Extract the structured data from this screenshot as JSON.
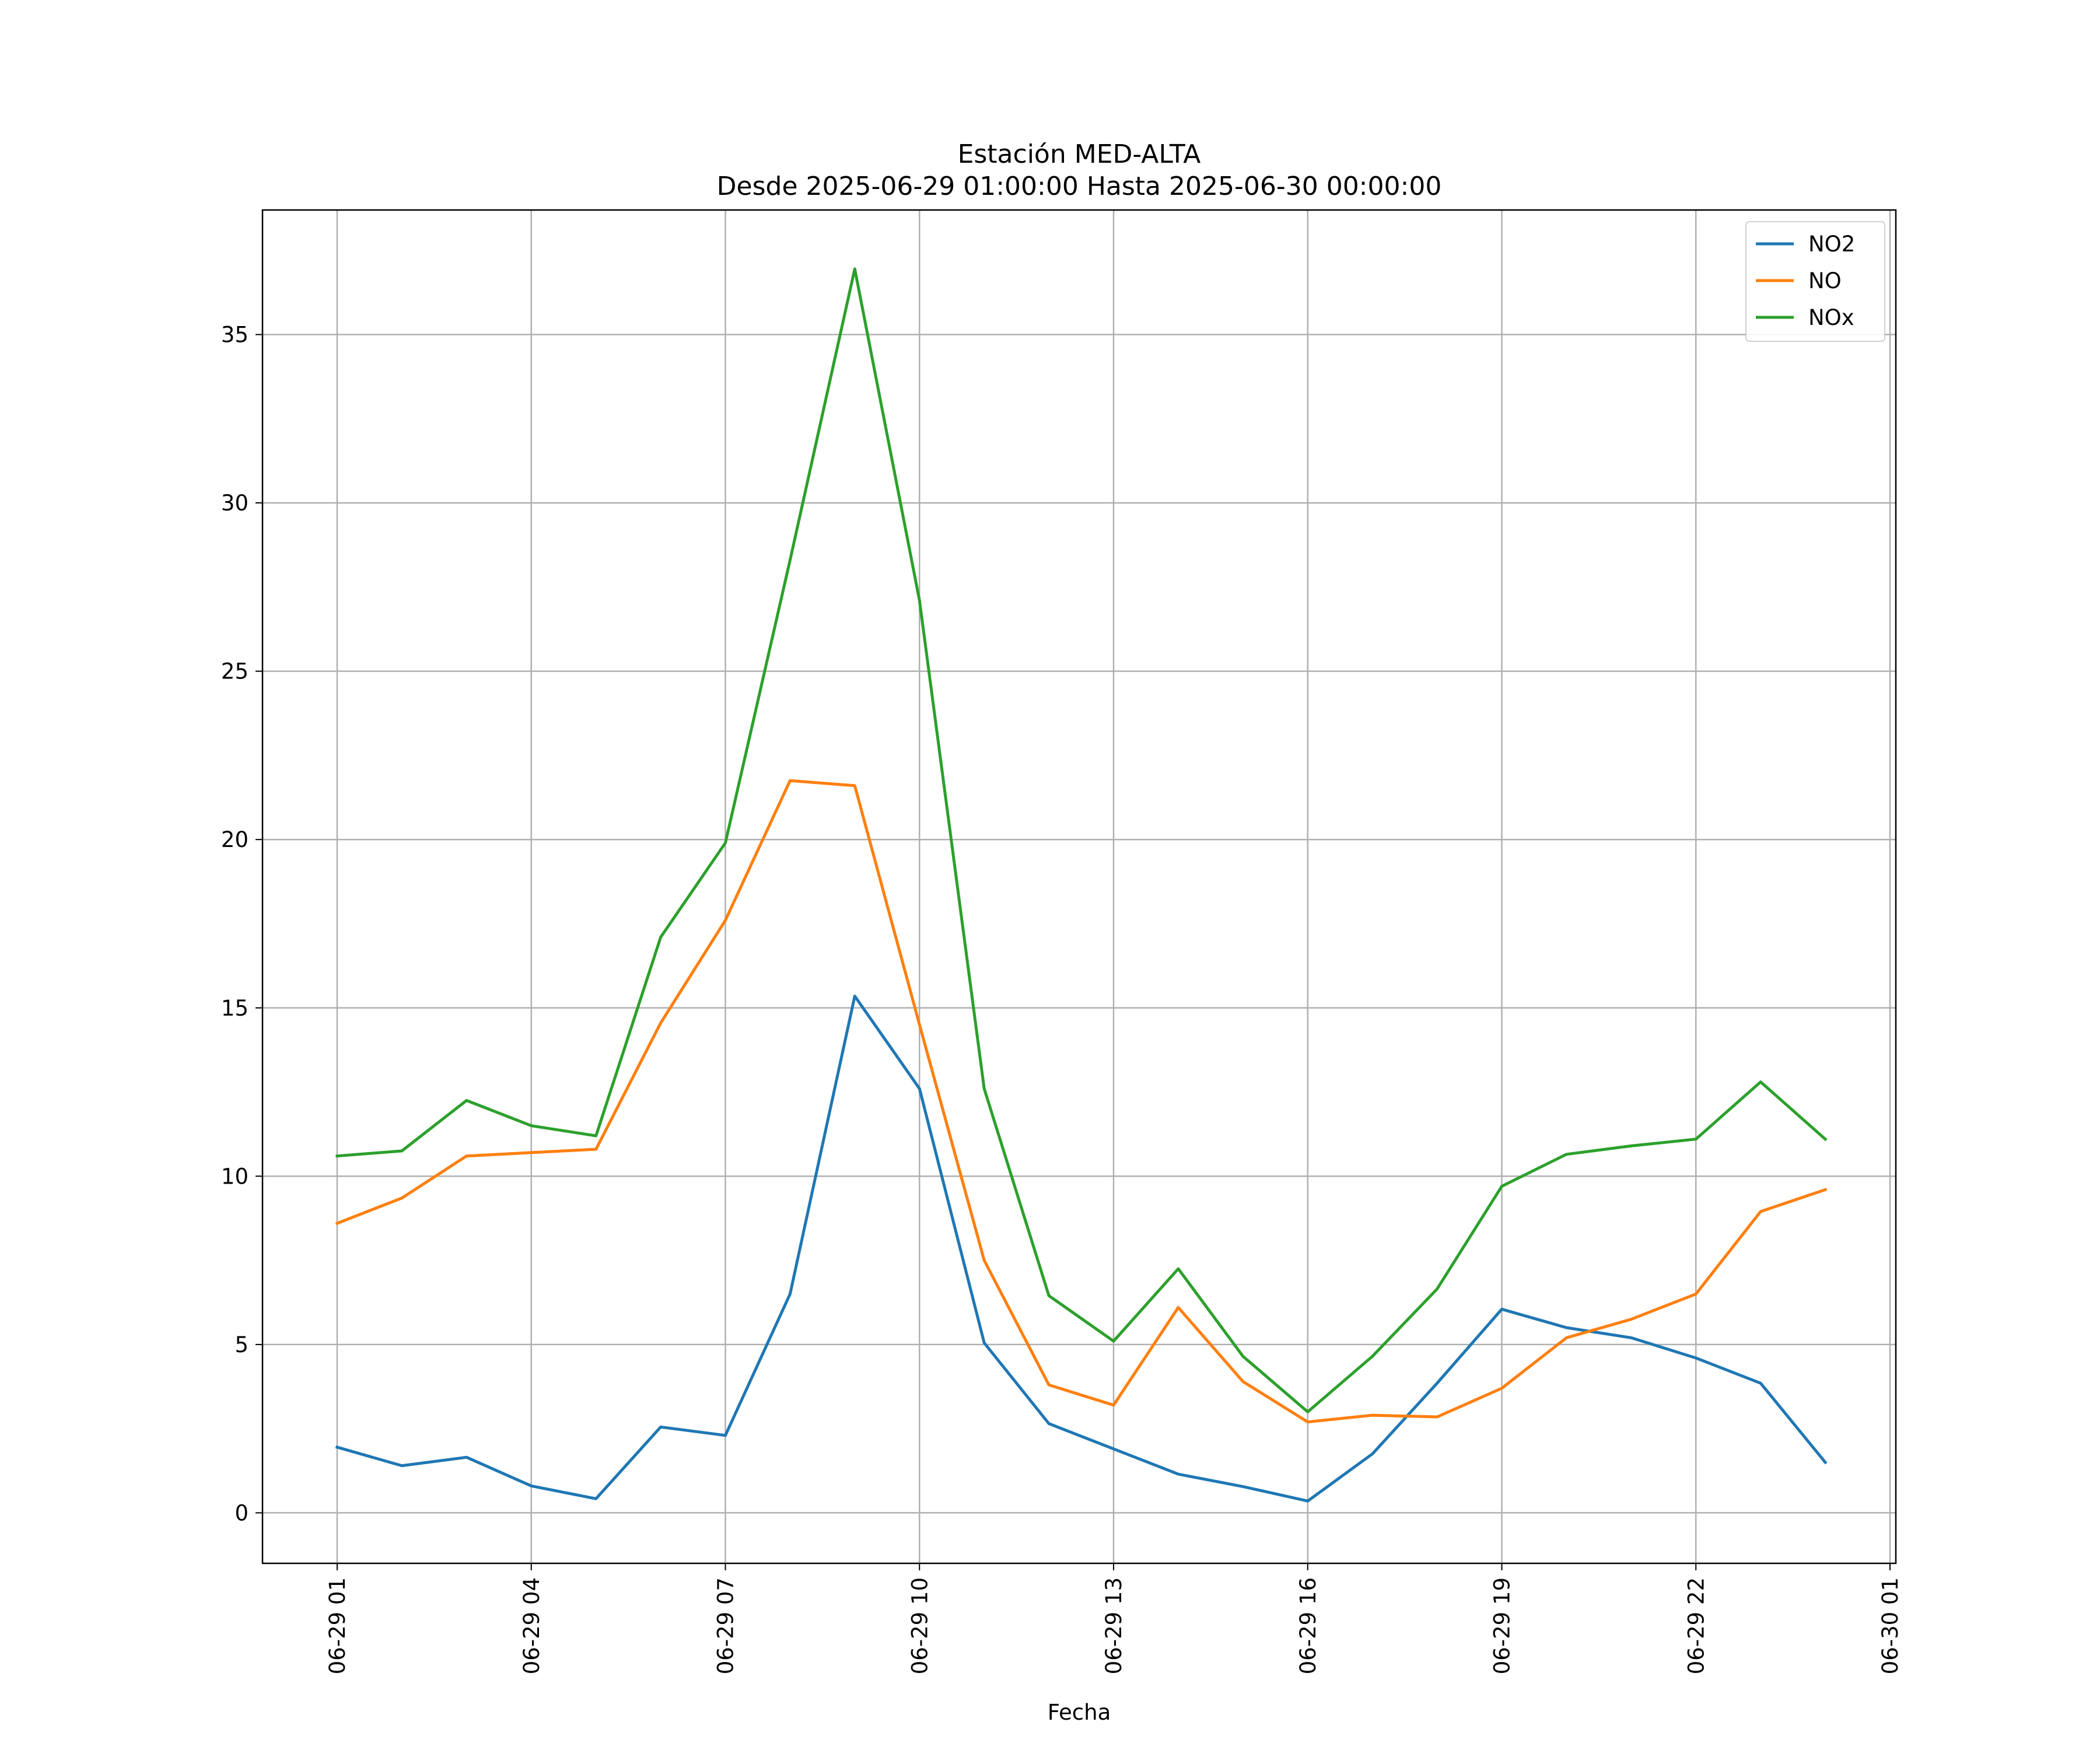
{
  "chart_data": {
    "type": "line",
    "title": "Estación MED-ALTA",
    "subtitle": "Desde 2025-06-29 01:00:00 Hasta 2025-06-30 00:00:00",
    "xlabel": "Fecha",
    "ylabel": "",
    "x_start": "2025-06-29 01:00",
    "x_end": "2025-06-30 01:00",
    "x_ticks": [
      "06-29 01",
      "06-29 04",
      "06-29 07",
      "06-29 10",
      "06-29 13",
      "06-29 16",
      "06-29 19",
      "06-29 22",
      "06-30 01"
    ],
    "y_ticks": [
      0,
      5,
      10,
      15,
      20,
      25,
      30,
      35
    ],
    "ylim": [
      -1.5,
      38.7
    ],
    "grid": true,
    "legend_position": "top-right",
    "x": [
      "06-29 01",
      "06-29 02",
      "06-29 03",
      "06-29 04",
      "06-29 05",
      "06-29 06",
      "06-29 07",
      "06-29 08",
      "06-29 09",
      "06-29 10",
      "06-29 11",
      "06-29 12",
      "06-29 13",
      "06-29 14",
      "06-29 15",
      "06-29 16",
      "06-29 17",
      "06-29 18",
      "06-29 19",
      "06-29 20",
      "06-29 21",
      "06-29 22",
      "06-29 23",
      "06-30 00"
    ],
    "series": [
      {
        "name": "NO2",
        "color": "#1f77b4",
        "values": [
          1.95,
          1.4,
          1.65,
          0.8,
          0.42,
          2.55,
          2.3,
          6.5,
          15.35,
          12.6,
          5.05,
          2.65,
          1.9,
          1.15,
          0.78,
          0.35,
          1.75,
          3.85,
          6.05,
          5.5,
          5.2,
          4.6,
          3.85,
          1.5
        ]
      },
      {
        "name": "NO",
        "color": "#ff7f0e",
        "values": [
          8.6,
          9.35,
          10.6,
          10.7,
          10.8,
          14.55,
          17.6,
          21.75,
          21.6,
          14.5,
          7.5,
          3.8,
          3.2,
          6.1,
          3.9,
          2.7,
          2.9,
          2.85,
          3.7,
          5.2,
          5.75,
          6.5,
          8.95,
          9.6
        ]
      },
      {
        "name": "NOx",
        "color": "#2ca02c",
        "values": [
          10.6,
          10.75,
          12.25,
          11.5,
          11.2,
          17.1,
          19.9,
          28.3,
          36.95,
          27.1,
          12.6,
          6.45,
          5.1,
          7.25,
          4.65,
          3.0,
          4.65,
          6.65,
          9.7,
          10.65,
          10.9,
          11.1,
          12.8,
          11.1
        ]
      }
    ]
  }
}
